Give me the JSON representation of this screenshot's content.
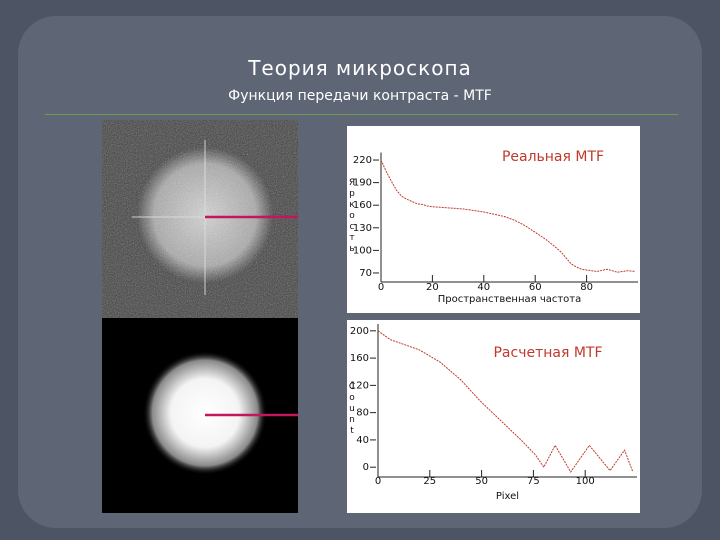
{
  "slide": {
    "title": "Теория микроскопа",
    "subtitle": "Функция передачи контраста - MTF"
  },
  "chart_data": [
    {
      "type": "line",
      "x_label": "Пространственная частота",
      "y_label": "Яркость",
      "x": [
        0,
        2,
        4,
        6,
        8,
        10,
        12,
        14,
        16,
        18,
        20,
        24,
        28,
        32,
        36,
        40,
        44,
        48,
        52,
        56,
        60,
        64,
        68,
        70,
        72,
        74,
        76,
        78,
        80,
        84,
        88,
        92,
        96,
        99
      ],
      "series": [
        {
          "name": "Реальная MTF",
          "color": "#c0392b",
          "values": [
            220,
            205,
            192,
            180,
            172,
            168,
            165,
            162,
            161,
            159,
            158,
            157,
            156,
            155,
            153,
            151,
            148,
            145,
            140,
            133,
            124,
            115,
            104,
            98,
            90,
            82,
            78,
            75,
            74,
            72,
            75,
            71,
            73,
            72
          ]
        }
      ],
      "xlim": [
        0,
        100
      ],
      "ylim": [
        62,
        230
      ],
      "xticks": [
        0,
        20,
        40,
        60,
        80
      ],
      "yticks": [
        220,
        190,
        160,
        130,
        100,
        70
      ]
    },
    {
      "type": "line",
      "x_label": "Pixel",
      "y_label": "Count",
      "x": [
        0,
        6,
        20,
        30,
        40,
        49,
        59,
        69,
        76,
        80,
        85.5,
        93,
        102,
        112,
        119,
        123
      ],
      "series": [
        {
          "name": "Расчетная MTF",
          "color": "#c0392b",
          "values": [
            200,
            187,
            172,
            154,
            128,
            98,
            69,
            40,
            18,
            0,
            32,
            -7,
            32,
            -5,
            25,
            -7
          ]
        }
      ],
      "xlim": [
        0,
        125
      ],
      "ylim": [
        -10,
        210
      ],
      "xticks": [
        0,
        25,
        50,
        75,
        100
      ],
      "yticks": [
        200,
        160,
        120,
        80,
        40,
        0
      ]
    }
  ]
}
